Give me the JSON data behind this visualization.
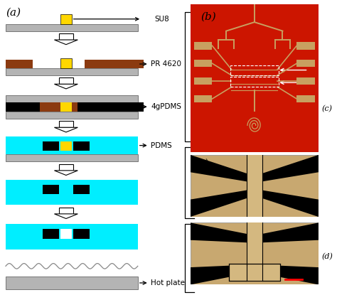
{
  "fig_width": 4.74,
  "fig_height": 4.15,
  "dpi": 100,
  "bg_color": "#ffffff",
  "light_gray": "#b4b4b4",
  "dark_gray": "#505050",
  "brown": "#8B3A10",
  "cyan": "#00EEFF",
  "yellow": "#FFD700",
  "black": "#000000",
  "white": "#ffffff",
  "red_chip": "#cc1500",
  "chip_tan": "#c8a060",
  "label_su8": "SU8",
  "label_pr": "PR 4620",
  "label_tgpdms": "4gPDMS",
  "label_pdms": "PDMS",
  "label_hot": "Hot plate",
  "label_a": "(a)",
  "label_b": "(b)",
  "label_c": "(c)",
  "label_d": "(d)"
}
